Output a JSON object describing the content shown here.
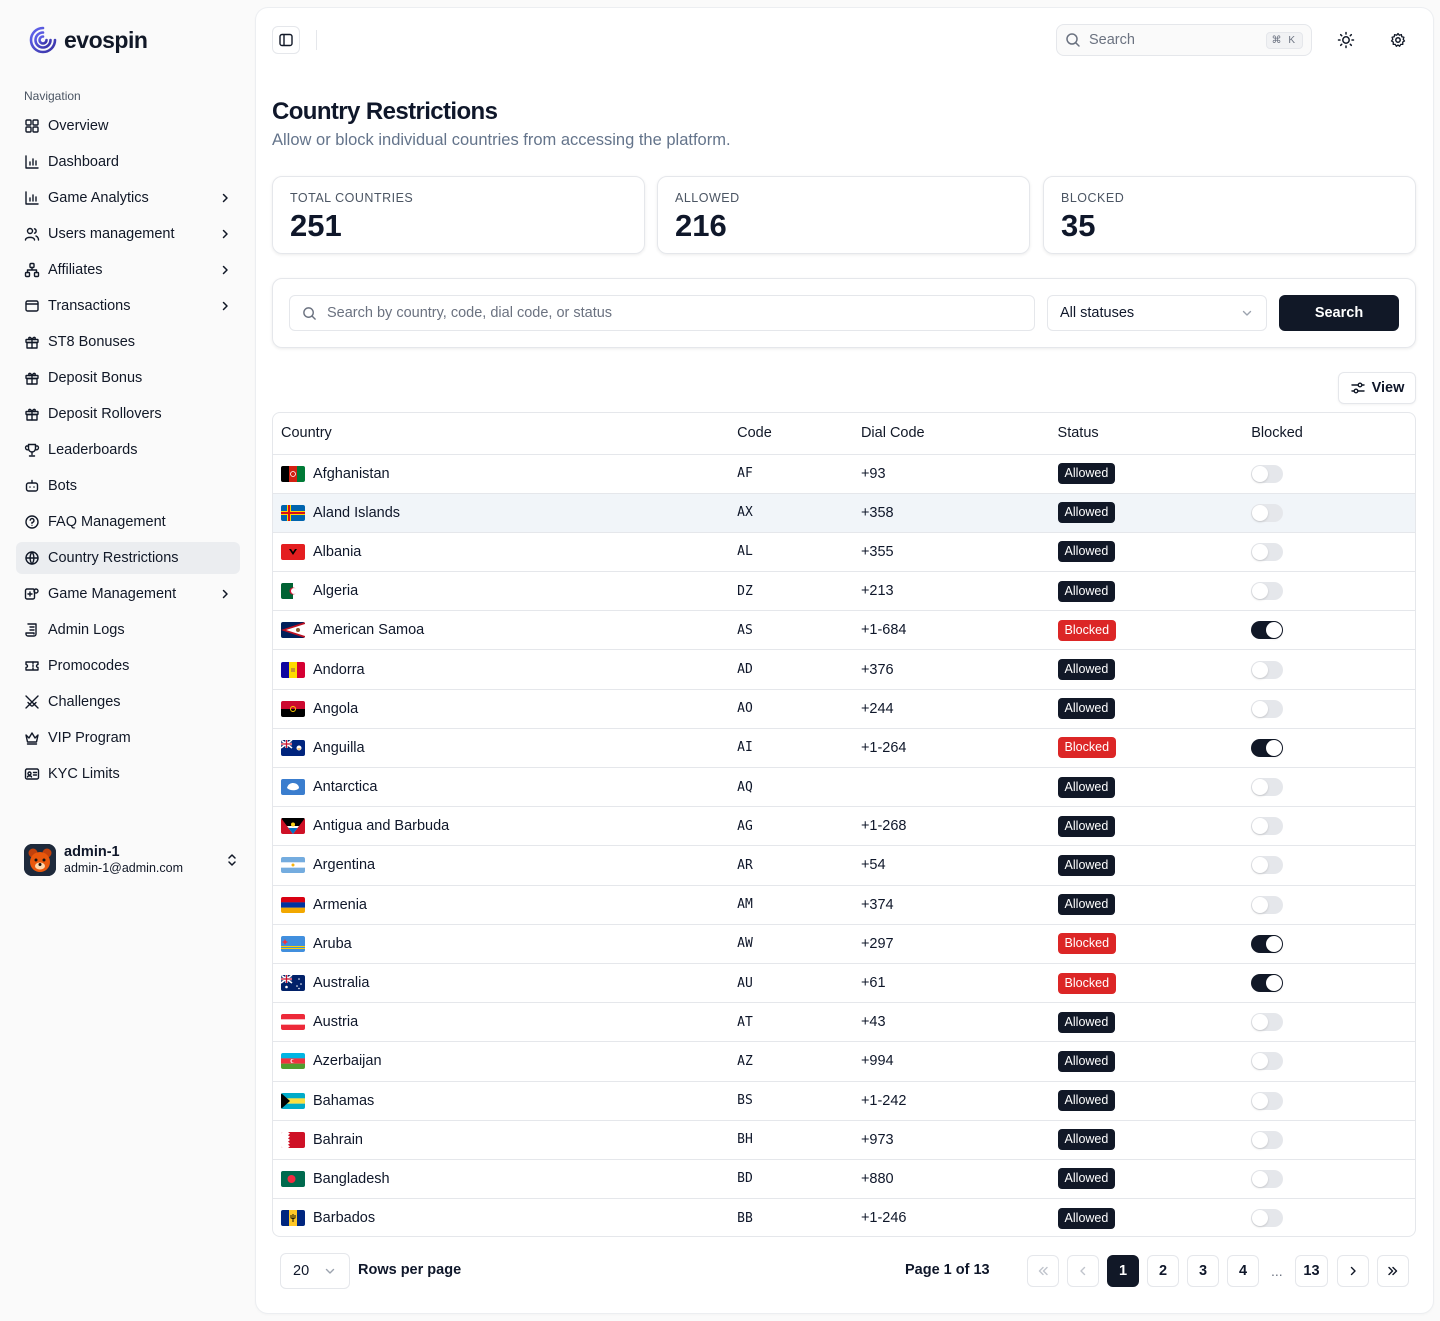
{
  "brand": {
    "name": "evospin"
  },
  "sidebar": {
    "section_label": "Navigation",
    "items": [
      {
        "label": "Overview",
        "icon": "grid-icon",
        "chevron": false
      },
      {
        "label": "Dashboard",
        "icon": "bar-chart-icon",
        "chevron": false
      },
      {
        "label": "Game Analytics",
        "icon": "bar-chart-icon",
        "chevron": true
      },
      {
        "label": "Users management",
        "icon": "users-icon",
        "chevron": true
      },
      {
        "label": "Affiliates",
        "icon": "network-icon",
        "chevron": true
      },
      {
        "label": "Transactions",
        "icon": "wallet-icon",
        "chevron": true
      },
      {
        "label": "ST8 Bonuses",
        "icon": "gift-icon",
        "chevron": false
      },
      {
        "label": "Deposit Bonus",
        "icon": "gift-icon",
        "chevron": false
      },
      {
        "label": "Deposit Rollovers",
        "icon": "gift-icon",
        "chevron": false
      },
      {
        "label": "Leaderboards",
        "icon": "trophy-icon",
        "chevron": false
      },
      {
        "label": "Bots",
        "icon": "bot-icon",
        "chevron": false
      },
      {
        "label": "FAQ Management",
        "icon": "help-circle-icon",
        "chevron": false
      },
      {
        "label": "Country Restrictions",
        "icon": "globe-icon",
        "chevron": false,
        "active": true
      },
      {
        "label": "Game Management",
        "icon": "gamepad-icon",
        "chevron": true
      },
      {
        "label": "Admin Logs",
        "icon": "scroll-icon",
        "chevron": false
      },
      {
        "label": "Promocodes",
        "icon": "ticket-icon",
        "chevron": false
      },
      {
        "label": "Challenges",
        "icon": "swords-icon",
        "chevron": false
      },
      {
        "label": "VIP Program",
        "icon": "crown-icon",
        "chevron": false
      },
      {
        "label": "KYC Limits",
        "icon": "id-card-icon",
        "chevron": false
      }
    ]
  },
  "user": {
    "name": "admin-1",
    "email": "admin-1@admin.com"
  },
  "topbar": {
    "search_placeholder": "Search",
    "shortcut": "⌘ K"
  },
  "page": {
    "title": "Country Restrictions",
    "subtitle": "Allow or block individual countries from accessing the platform."
  },
  "stats": [
    {
      "label": "TOTAL COUNTRIES",
      "value": "251"
    },
    {
      "label": "ALLOWED",
      "value": "216"
    },
    {
      "label": "BLOCKED",
      "value": "35"
    }
  ],
  "filters": {
    "search_placeholder": "Search by country, code, dial code, or status",
    "status_value": "All statuses",
    "search_button": "Search"
  },
  "view_button": "View",
  "table": {
    "columns": [
      "Country",
      "Code",
      "Dial Code",
      "Status",
      "Blocked"
    ],
    "rows": [
      {
        "country": "Afghanistan",
        "code": "AF",
        "dial": "+93",
        "status": "Allowed",
        "blocked": false
      },
      {
        "country": "Aland Islands",
        "code": "AX",
        "dial": "+358",
        "status": "Allowed",
        "blocked": false
      },
      {
        "country": "Albania",
        "code": "AL",
        "dial": "+355",
        "status": "Allowed",
        "blocked": false
      },
      {
        "country": "Algeria",
        "code": "DZ",
        "dial": "+213",
        "status": "Allowed",
        "blocked": false
      },
      {
        "country": "American Samoa",
        "code": "AS",
        "dial": "+1-684",
        "status": "Blocked",
        "blocked": true
      },
      {
        "country": "Andorra",
        "code": "AD",
        "dial": "+376",
        "status": "Allowed",
        "blocked": false
      },
      {
        "country": "Angola",
        "code": "AO",
        "dial": "+244",
        "status": "Allowed",
        "blocked": false
      },
      {
        "country": "Anguilla",
        "code": "AI",
        "dial": "+1-264",
        "status": "Blocked",
        "blocked": true
      },
      {
        "country": "Antarctica",
        "code": "AQ",
        "dial": "",
        "status": "Allowed",
        "blocked": false
      },
      {
        "country": "Antigua and Barbuda",
        "code": "AG",
        "dial": "+1-268",
        "status": "Allowed",
        "blocked": false
      },
      {
        "country": "Argentina",
        "code": "AR",
        "dial": "+54",
        "status": "Allowed",
        "blocked": false
      },
      {
        "country": "Armenia",
        "code": "AM",
        "dial": "+374",
        "status": "Allowed",
        "blocked": false
      },
      {
        "country": "Aruba",
        "code": "AW",
        "dial": "+297",
        "status": "Blocked",
        "blocked": true
      },
      {
        "country": "Australia",
        "code": "AU",
        "dial": "+61",
        "status": "Blocked",
        "blocked": true
      },
      {
        "country": "Austria",
        "code": "AT",
        "dial": "+43",
        "status": "Allowed",
        "blocked": false
      },
      {
        "country": "Azerbaijan",
        "code": "AZ",
        "dial": "+994",
        "status": "Allowed",
        "blocked": false
      },
      {
        "country": "Bahamas",
        "code": "BS",
        "dial": "+1-242",
        "status": "Allowed",
        "blocked": false
      },
      {
        "country": "Bahrain",
        "code": "BH",
        "dial": "+973",
        "status": "Allowed",
        "blocked": false
      },
      {
        "country": "Bangladesh",
        "code": "BD",
        "dial": "+880",
        "status": "Allowed",
        "blocked": false
      },
      {
        "country": "Barbados",
        "code": "BB",
        "dial": "+1-246",
        "status": "Allowed",
        "blocked": false
      }
    ]
  },
  "pagination": {
    "rows_per_page_value": "20",
    "rows_per_page_label": "Rows per page",
    "page_info": "Page 1 of 13",
    "pages": [
      "1",
      "2",
      "3",
      "4",
      "13"
    ],
    "current": "1",
    "ellipsis": "..."
  },
  "colors": {
    "primary": "#111827",
    "blocked": "#dc2626",
    "brand": "#4f46e5"
  }
}
